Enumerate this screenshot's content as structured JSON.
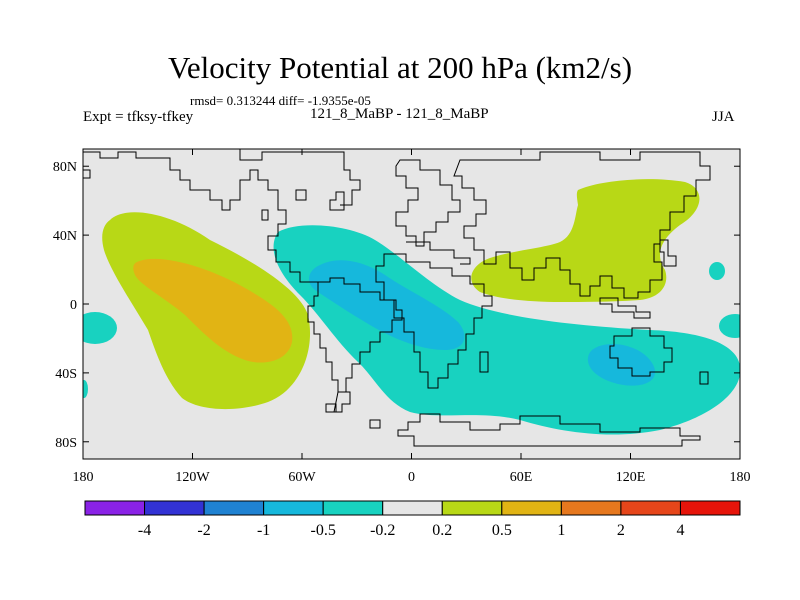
{
  "title": "Velocity Potential at 200 hPa (km2/s)",
  "stats": "rmsd= 0.313244  diff= -1.9355e-05",
  "experiment": "Expt = tfksy-tfkey",
  "subtitle": "121_8_MaBP - 121_8_MaBP",
  "season": "JJA",
  "map": {
    "lon_range": [
      -180,
      180
    ],
    "lat_range": [
      -90,
      90
    ],
    "lat_ticks": [
      {
        "value": 80,
        "label": "80N"
      },
      {
        "value": 40,
        "label": "40N"
      },
      {
        "value": 0,
        "label": "0"
      },
      {
        "value": -40,
        "label": "40S"
      },
      {
        "value": -80,
        "label": "80S"
      }
    ],
    "lon_ticks": [
      {
        "value": -180,
        "label": "180"
      },
      {
        "value": -120,
        "label": "120W"
      },
      {
        "value": -60,
        "label": "60W"
      },
      {
        "value": 0,
        "label": "0"
      },
      {
        "value": 60,
        "label": "60E"
      },
      {
        "value": 120,
        "label": "120E"
      },
      {
        "value": 180,
        "label": "180"
      }
    ],
    "background_color": "#e6e6e6",
    "coast_color": "#000000"
  },
  "colorbar": {
    "levels": [
      "-4",
      "-2",
      "-1",
      "-0.5",
      "-0.2",
      "0.2",
      "0.5",
      "1",
      "2",
      "4"
    ],
    "colors": [
      "#8a22e6",
      "#3232d4",
      "#1f82d2",
      "#16b8dc",
      "#18d2c0",
      "#e6e6e6",
      "#b8d816",
      "#e1b414",
      "#e6781e",
      "#e6461a",
      "#e6140a"
    ]
  },
  "chart_data": {
    "type": "contour-map",
    "title": "Velocity Potential at 200 hPa (km2/s)",
    "variable": "Velocity Potential at 200 hPa",
    "units": "km2/s",
    "contour_levels": [
      -4,
      -2,
      -1,
      -0.5,
      -0.2,
      0.2,
      0.5,
      1,
      2,
      4
    ],
    "features": [
      {
        "name": "Eastern Pacific positive anomaly",
        "range": "0.5 to 1 (core), 0.2 to 0.5 (outer)",
        "center_lon": -110,
        "center_lat": 0
      },
      {
        "name": "Atlantic / Africa negative anomaly",
        "range": "-1 to -0.5 (core), -0.5 to -0.2 (outer)",
        "center_lon": -25,
        "center_lat": -5
      },
      {
        "name": "Southern Indian Ocean negative anomaly",
        "range": "-1 to -0.5 (core)",
        "center_lon": 105,
        "center_lat": -35
      },
      {
        "name": "Asia positive anomaly",
        "range": "0.2 to 0.5",
        "center_lon": 95,
        "center_lat": 40
      }
    ]
  }
}
